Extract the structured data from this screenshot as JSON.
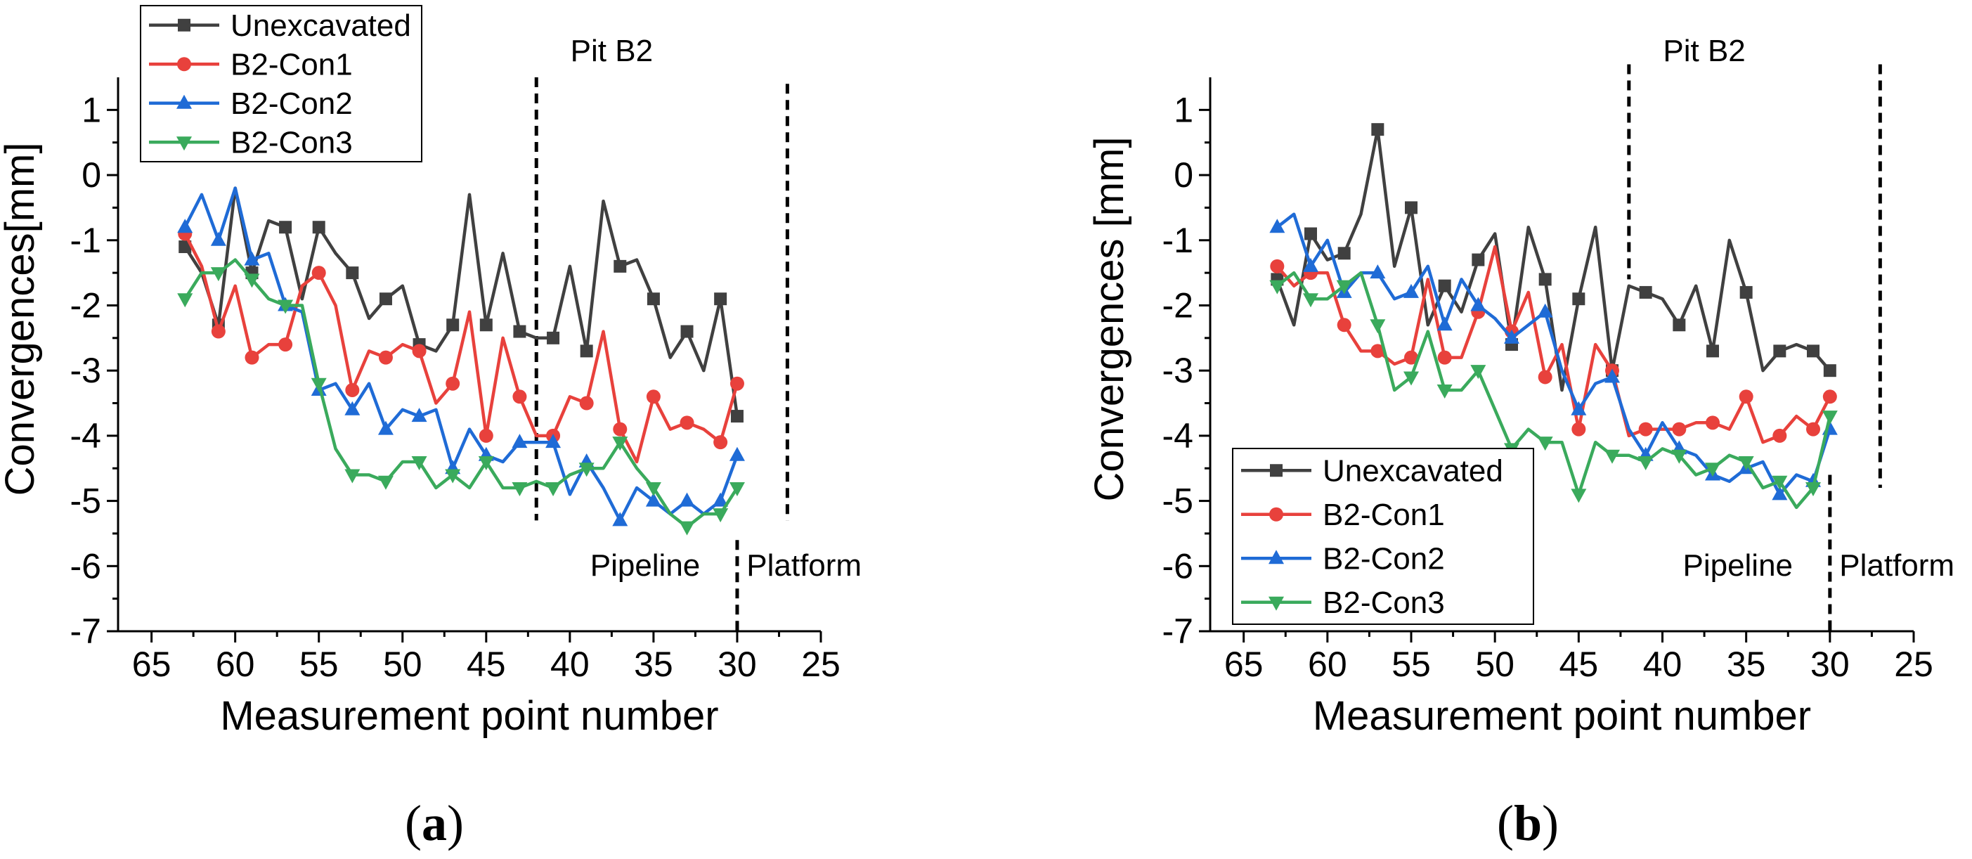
{
  "figure": {
    "panel_labels": [
      {
        "open": "(",
        "letter": "a",
        "close": ")"
      },
      {
        "open": "(",
        "letter": "b",
        "close": ")"
      }
    ]
  },
  "chart_data": [
    {
      "type": "line",
      "xlabel": "Measurement point number",
      "ylabel": "Convergences[mm]",
      "xlim": [
        67,
        25
      ],
      "ylim": [
        -7,
        1.5
      ],
      "x_ticks": [
        65,
        60,
        55,
        50,
        45,
        40,
        35,
        30,
        25
      ],
      "y_ticks": [
        1,
        0,
        -1,
        -2,
        -3,
        -4,
        -5,
        -6,
        -7
      ],
      "legend_position": "top-left",
      "annotations": [
        {
          "text": "Pit B2",
          "x": 37.5,
          "y": 1.75
        },
        {
          "text": "Pipeline",
          "x": 35.5,
          "y": -6.15
        },
        {
          "text": "Platform",
          "x": 26,
          "y": -6.15
        }
      ],
      "reference_lines": [
        {
          "x": 42,
          "y_from": 1.5,
          "y_to": -5.3
        },
        {
          "x": 27,
          "y_from": 1.4,
          "y_to": -5.3
        },
        {
          "x": 30,
          "y_from": -5.6,
          "y_to": -7
        }
      ],
      "series": [
        {
          "name": "Unexcavated",
          "color": "#404040",
          "marker": "square",
          "x": [
            63,
            62,
            61,
            60,
            59,
            58,
            57,
            56,
            55,
            54,
            53,
            52,
            51,
            50,
            49,
            48,
            47,
            46,
            45,
            44,
            43,
            42,
            41,
            40,
            39,
            38,
            37,
            36,
            35,
            34,
            33,
            32,
            31,
            30
          ],
          "y": [
            -1.1,
            -1.5,
            -2.3,
            -0.2,
            -1.5,
            -0.7,
            -0.8,
            -1.9,
            -0.8,
            -1.2,
            -1.5,
            -2.2,
            -1.9,
            -1.7,
            -2.6,
            -2.7,
            -2.3,
            -0.3,
            -2.3,
            -1.2,
            -2.4,
            -2.5,
            -2.5,
            -1.4,
            -2.7,
            -0.4,
            -1.4,
            -1.3,
            -1.9,
            -2.8,
            -2.4,
            -3.0,
            -1.9,
            -3.7
          ]
        },
        {
          "name": "B2-Con1",
          "color": "#e8413c",
          "marker": "circle",
          "x": [
            63,
            62,
            61,
            60,
            59,
            58,
            57,
            56,
            55,
            54,
            53,
            52,
            51,
            50,
            49,
            48,
            47,
            46,
            45,
            44,
            43,
            42,
            41,
            40,
            39,
            38,
            37,
            36,
            35,
            34,
            33,
            32,
            31,
            30
          ],
          "y": [
            -0.9,
            -1.4,
            -2.4,
            -1.7,
            -2.8,
            -2.6,
            -2.6,
            -1.7,
            -1.5,
            -2.0,
            -3.3,
            -2.7,
            -2.8,
            -2.6,
            -2.7,
            -3.5,
            -3.2,
            -2.1,
            -4.0,
            -2.5,
            -3.4,
            -4.0,
            -4.0,
            -3.4,
            -3.5,
            -2.4,
            -3.9,
            -4.4,
            -3.4,
            -3.9,
            -3.8,
            -3.9,
            -4.1,
            -3.2
          ]
        },
        {
          "name": "B2-Con2",
          "color": "#1f6bd6",
          "marker": "triangle-up",
          "x": [
            63,
            62,
            61,
            60,
            59,
            58,
            57,
            56,
            55,
            54,
            53,
            52,
            51,
            50,
            49,
            48,
            47,
            46,
            45,
            44,
            43,
            42,
            41,
            40,
            39,
            38,
            37,
            36,
            35,
            34,
            33,
            32,
            31,
            30
          ],
          "y": [
            -0.8,
            -0.3,
            -1.0,
            -0.2,
            -1.3,
            -1.2,
            -2.0,
            -2.1,
            -3.3,
            -3.2,
            -3.6,
            -3.2,
            -3.9,
            -3.6,
            -3.7,
            -3.6,
            -4.5,
            -3.9,
            -4.3,
            -4.4,
            -4.1,
            -4.1,
            -4.1,
            -4.9,
            -4.4,
            -4.8,
            -5.3,
            -4.8,
            -5.0,
            -5.2,
            -5.0,
            -5.2,
            -5.0,
            -4.3
          ]
        },
        {
          "name": "B2-Con3",
          "color": "#3aaa5c",
          "marker": "triangle-down",
          "x": [
            63,
            62,
            61,
            60,
            59,
            58,
            57,
            56,
            55,
            54,
            53,
            52,
            51,
            50,
            49,
            48,
            47,
            46,
            45,
            44,
            43,
            42,
            41,
            40,
            39,
            38,
            37,
            36,
            35,
            34,
            33,
            32,
            31,
            30
          ],
          "y": [
            -1.9,
            -1.5,
            -1.5,
            -1.3,
            -1.6,
            -1.9,
            -2.0,
            -2.0,
            -3.2,
            -4.2,
            -4.6,
            -4.6,
            -4.7,
            -4.4,
            -4.4,
            -4.8,
            -4.6,
            -4.8,
            -4.4,
            -4.8,
            -4.8,
            -4.7,
            -4.8,
            -4.6,
            -4.5,
            -4.5,
            -4.1,
            -4.5,
            -4.8,
            -5.2,
            -5.4,
            -5.2,
            -5.2,
            -4.8
          ]
        }
      ]
    },
    {
      "type": "line",
      "xlabel": "Measurement point number",
      "ylabel": "Convergences [mm]",
      "xlim": [
        67,
        25
      ],
      "ylim": [
        -7,
        1.5
      ],
      "x_ticks": [
        65,
        60,
        55,
        50,
        45,
        40,
        35,
        30,
        25
      ],
      "y_ticks": [
        1,
        0,
        -1,
        -2,
        -3,
        -4,
        -5,
        -6,
        -7
      ],
      "legend_position": "bottom-left",
      "annotations": [
        {
          "text": "Pit B2",
          "x": 37.5,
          "y": 1.75
        },
        {
          "text": "Pipeline",
          "x": 35.5,
          "y": -6.15
        },
        {
          "text": "Platform",
          "x": 26,
          "y": -6.15
        }
      ],
      "reference_lines": [
        {
          "x": 42,
          "y_from": 1.7,
          "y_to": -1.6
        },
        {
          "x": 27,
          "y_from": 1.7,
          "y_to": -4.8
        },
        {
          "x": 30,
          "y_from": -4.6,
          "y_to": -7
        }
      ],
      "series": [
        {
          "name": "Unexcavated",
          "color": "#404040",
          "marker": "square",
          "x": [
            63,
            62,
            61,
            60,
            59,
            58,
            57,
            56,
            55,
            54,
            53,
            52,
            51,
            50,
            49,
            48,
            47,
            46,
            45,
            44,
            43,
            42,
            41,
            40,
            39,
            38,
            37,
            36,
            35,
            34,
            33,
            32,
            31,
            30
          ],
          "y": [
            -1.6,
            -2.3,
            -0.9,
            -1.3,
            -1.2,
            -0.6,
            0.7,
            -1.4,
            -0.5,
            -2.3,
            -1.7,
            -2.1,
            -1.3,
            -0.9,
            -2.6,
            -0.8,
            -1.6,
            -3.3,
            -1.9,
            -0.8,
            -3.0,
            -1.7,
            -1.8,
            -1.9,
            -2.3,
            -1.7,
            -2.7,
            -1.0,
            -1.8,
            -3.0,
            -2.7,
            -2.6,
            -2.7,
            -3.0
          ]
        },
        {
          "name": "B2-Con1",
          "color": "#e8413c",
          "marker": "circle",
          "x": [
            63,
            62,
            61,
            60,
            59,
            58,
            57,
            56,
            55,
            54,
            53,
            52,
            51,
            50,
            49,
            48,
            47,
            46,
            45,
            44,
            43,
            42,
            41,
            40,
            39,
            38,
            37,
            36,
            35,
            34,
            33,
            32,
            31,
            30
          ],
          "y": [
            -1.4,
            -1.7,
            -1.5,
            -1.5,
            -2.3,
            -2.7,
            -2.7,
            -2.9,
            -2.8,
            -1.6,
            -2.8,
            -2.8,
            -2.1,
            -1.1,
            -2.4,
            -1.8,
            -3.1,
            -2.6,
            -3.9,
            -2.6,
            -3.0,
            -4.0,
            -3.9,
            -3.9,
            -3.9,
            -3.8,
            -3.8,
            -3.9,
            -3.4,
            -4.1,
            -4.0,
            -3.7,
            -3.9,
            -3.4
          ]
        },
        {
          "name": "B2-Con2",
          "color": "#1f6bd6",
          "marker": "triangle-up",
          "x": [
            63,
            62,
            61,
            60,
            59,
            58,
            57,
            56,
            55,
            54,
            53,
            52,
            51,
            50,
            49,
            48,
            47,
            46,
            45,
            44,
            43,
            42,
            41,
            40,
            39,
            38,
            37,
            36,
            35,
            34,
            33,
            32,
            31,
            30
          ],
          "y": [
            -0.8,
            -0.6,
            -1.4,
            -1.0,
            -1.8,
            -1.5,
            -1.5,
            -1.9,
            -1.8,
            -1.4,
            -2.3,
            -1.6,
            -2.0,
            -2.2,
            -2.5,
            -2.3,
            -2.1,
            -3.0,
            -3.6,
            -3.2,
            -3.1,
            -3.9,
            -4.3,
            -3.8,
            -4.2,
            -4.3,
            -4.6,
            -4.7,
            -4.5,
            -4.4,
            -4.9,
            -4.6,
            -4.7,
            -3.9
          ]
        },
        {
          "name": "B2-Con3",
          "color": "#3aaa5c",
          "marker": "triangle-down",
          "x": [
            63,
            62,
            61,
            60,
            59,
            58,
            57,
            56,
            55,
            54,
            53,
            52,
            51,
            50,
            49,
            48,
            47,
            46,
            45,
            44,
            43,
            42,
            41,
            40,
            39,
            38,
            37,
            36,
            35,
            34,
            33,
            32,
            31,
            30
          ],
          "y": [
            -1.7,
            -1.5,
            -1.9,
            -1.9,
            -1.7,
            -1.5,
            -2.3,
            -3.3,
            -3.1,
            -2.4,
            -3.3,
            -3.3,
            -3.0,
            -3.6,
            -4.2,
            -3.9,
            -4.1,
            -4.1,
            -4.9,
            -4.1,
            -4.3,
            -4.3,
            -4.4,
            -4.2,
            -4.3,
            -4.6,
            -4.5,
            -4.3,
            -4.4,
            -4.8,
            -4.7,
            -5.1,
            -4.8,
            -3.7
          ]
        }
      ]
    }
  ]
}
